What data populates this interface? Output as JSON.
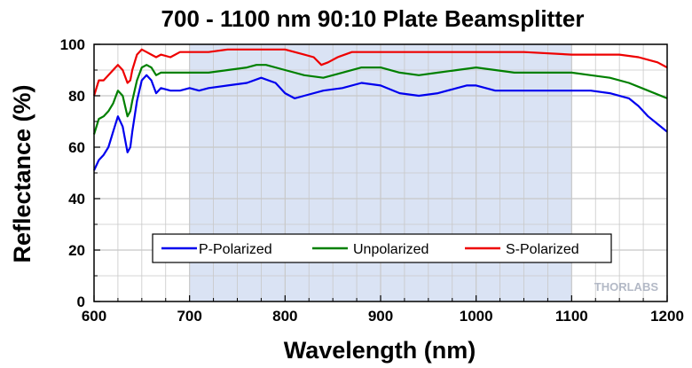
{
  "chart_data": {
    "type": "line",
    "title": "700 - 1100 nm 90:10 Plate Beamsplitter",
    "xlabel": "Wavelength (nm)",
    "ylabel": "Reflectance (%)",
    "xlim": [
      600,
      1200
    ],
    "ylim": [
      0,
      100
    ],
    "xticks": [
      600,
      700,
      800,
      900,
      1000,
      1100,
      1200
    ],
    "yticks": [
      0,
      20,
      40,
      60,
      80,
      100
    ],
    "grid": true,
    "legend_position": "bottom-center",
    "highlight_band": [
      700,
      1100
    ],
    "watermark": "THORLABS",
    "colors": {
      "band": "#dae3f4",
      "grid": "#c8c8c8",
      "P-Polarized": "#0000ee",
      "Unpolarized": "#008000",
      "S-Polarized": "#ee0000"
    },
    "series": [
      {
        "name": "P-Polarized",
        "x": [
          600,
          605,
          610,
          615,
          620,
          625,
          630,
          635,
          638,
          640,
          645,
          650,
          655,
          660,
          665,
          670,
          680,
          690,
          700,
          710,
          720,
          740,
          760,
          775,
          790,
          800,
          810,
          820,
          840,
          860,
          880,
          900,
          920,
          940,
          960,
          980,
          990,
          1000,
          1020,
          1040,
          1060,
          1080,
          1100,
          1120,
          1140,
          1160,
          1170,
          1180,
          1190,
          1200
        ],
        "y": [
          51,
          55,
          57,
          60,
          66,
          72,
          68,
          58,
          60,
          66,
          78,
          86,
          88,
          86,
          81,
          83,
          82,
          82,
          83,
          82,
          83,
          84,
          85,
          87,
          85,
          81,
          79,
          80,
          82,
          83,
          85,
          84,
          81,
          80,
          81,
          83,
          84,
          84,
          82,
          82,
          82,
          82,
          82,
          82,
          81,
          79,
          76,
          72,
          69,
          66
        ]
      },
      {
        "name": "Unpolarized",
        "x": [
          600,
          605,
          610,
          615,
          620,
          625,
          630,
          635,
          638,
          640,
          645,
          650,
          655,
          660,
          665,
          670,
          680,
          690,
          700,
          720,
          740,
          760,
          770,
          780,
          800,
          820,
          840,
          860,
          880,
          900,
          920,
          940,
          960,
          980,
          1000,
          1020,
          1040,
          1060,
          1080,
          1100,
          1120,
          1140,
          1160,
          1180,
          1200
        ],
        "y": [
          65,
          71,
          72,
          74,
          77,
          82,
          80,
          72,
          74,
          78,
          86,
          91,
          92,
          91,
          88,
          89,
          89,
          89,
          89,
          89,
          90,
          91,
          92,
          92,
          90,
          88,
          87,
          89,
          91,
          91,
          89,
          88,
          89,
          90,
          91,
          90,
          89,
          89,
          89,
          89,
          88,
          87,
          85,
          82,
          79
        ]
      },
      {
        "name": "S-Polarized",
        "x": [
          600,
          605,
          610,
          615,
          620,
          625,
          630,
          635,
          638,
          640,
          645,
          650,
          655,
          660,
          665,
          670,
          680,
          690,
          700,
          720,
          740,
          760,
          770,
          790,
          800,
          810,
          820,
          830,
          838,
          845,
          855,
          870,
          900,
          950,
          1000,
          1050,
          1100,
          1150,
          1170,
          1180,
          1190,
          1200
        ],
        "y": [
          80,
          86,
          86,
          88,
          90,
          92,
          90,
          85,
          86,
          90,
          96,
          98,
          97,
          96,
          95,
          96,
          95,
          97,
          97,
          97,
          98,
          98,
          98,
          98,
          98,
          97,
          96,
          95,
          92,
          93,
          95,
          97,
          97,
          97,
          97,
          97,
          96,
          96,
          95,
          94,
          93,
          91
        ]
      }
    ]
  }
}
